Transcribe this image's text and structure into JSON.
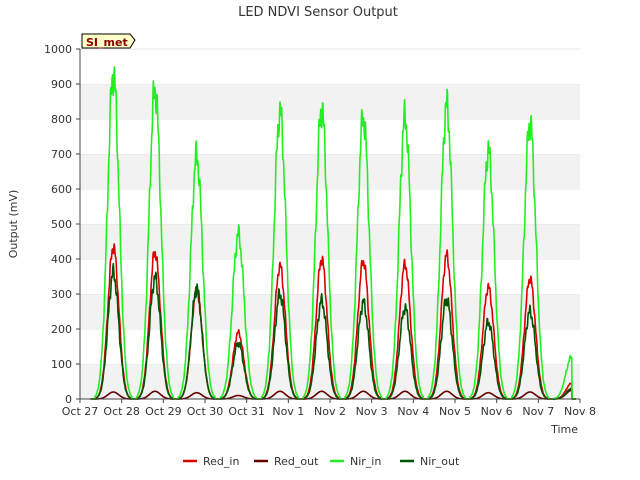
{
  "chart_data": {
    "type": "line",
    "title": "LED NDVI Sensor Output",
    "xlabel": "Time",
    "ylabel": "Output (mV)",
    "ylim": [
      0,
      1000
    ],
    "yticks": [
      0,
      100,
      200,
      300,
      400,
      500,
      600,
      700,
      800,
      900,
      1000
    ],
    "xticks": [
      "Oct 27",
      "Oct 28",
      "Oct 29",
      "Oct 30",
      "Oct 31",
      "Nov 1",
      "Nov 2",
      "Nov 3",
      "Nov 4",
      "Nov 5",
      "Nov 6",
      "Nov 7",
      "Nov 8"
    ],
    "site_label": "SI_met",
    "legend_position": "bottom",
    "grid": "horizontal bands",
    "day_peaks": {
      "days_from_oct27": [
        0.8,
        1.8,
        2.8,
        3.8,
        4.8,
        5.8,
        6.8,
        7.8,
        8.8,
        9.8,
        10.8,
        11.8
      ],
      "Red_in": [
        435,
        420,
        310,
        190,
        380,
        400,
        395,
        385,
        410,
        320,
        345,
        45
      ],
      "Red_out": [
        20,
        22,
        18,
        10,
        22,
        22,
        22,
        22,
        22,
        18,
        20,
        25
      ],
      "Nir_in": [
        930,
        885,
        695,
        470,
        820,
        830,
        805,
        805,
        840,
        710,
        790,
        120
      ],
      "Nir_out": [
        360,
        345,
        315,
        160,
        300,
        280,
        275,
        260,
        285,
        220,
        250,
        30
      ]
    },
    "series": [
      {
        "name": "Red_in",
        "color": "#dd0000"
      },
      {
        "name": "Red_out",
        "color": "#660000"
      },
      {
        "name": "Nir_in",
        "color": "#22ee22"
      },
      {
        "name": "Nir_out",
        "color": "#005500"
      }
    ]
  }
}
